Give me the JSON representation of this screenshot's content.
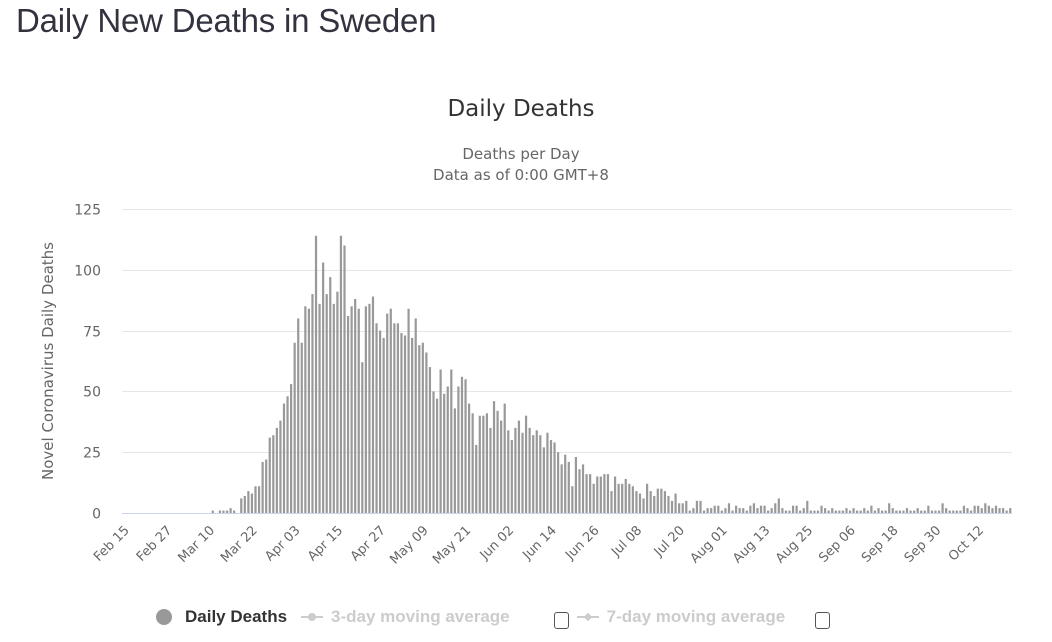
{
  "page": {
    "title": "Daily New Deaths in Sweden"
  },
  "chart_data": {
    "type": "bar",
    "title": "Daily Deaths",
    "subtitle_lines": [
      "Deaths per Day",
      "Data as of 0:00 GMT+8"
    ],
    "ylabel": "Novel Coronavirus Daily Deaths",
    "xlabel": "",
    "ylim": [
      0,
      125
    ],
    "yticks": [
      0,
      25,
      50,
      75,
      100,
      125
    ],
    "grid": true,
    "start_date": "Feb 15",
    "xtick_labels": [
      "Feb 15",
      "Feb 27",
      "Mar 10",
      "Mar 22",
      "Apr 03",
      "Apr 15",
      "Apr 27",
      "May 09",
      "May 21",
      "Jun 02",
      "Jun 14",
      "Jun 26",
      "Jul 08",
      "Jul 20",
      "Aug 01",
      "Aug 13",
      "Aug 25",
      "Sep 06",
      "Sep 18",
      "Sep 30",
      "Oct 12"
    ],
    "xtick_interval_days": 12,
    "bar_color": "#999999",
    "series": [
      {
        "name": "Daily Deaths",
        "values": [
          0,
          0,
          0,
          0,
          0,
          0,
          0,
          0,
          0,
          0,
          0,
          0,
          0,
          0,
          0,
          0,
          0,
          0,
          0,
          0,
          0,
          0,
          0,
          0,
          0,
          1,
          0,
          1,
          1,
          1,
          2,
          1,
          0,
          6,
          7,
          9,
          8,
          11,
          11,
          21,
          22,
          31,
          32,
          35,
          38,
          45,
          48,
          53,
          70,
          80,
          70,
          85,
          84,
          90,
          114,
          86,
          103,
          90,
          97,
          86,
          91,
          114,
          110,
          81,
          85,
          88,
          84,
          62,
          85,
          86,
          89,
          78,
          75,
          72,
          82,
          84,
          78,
          78,
          74,
          73,
          84,
          72,
          80,
          69,
          70,
          66,
          60,
          50,
          47,
          59,
          49,
          52,
          59,
          43,
          52,
          56,
          55,
          45,
          41,
          28,
          40,
          40,
          41,
          35,
          46,
          42,
          38,
          45,
          34,
          30,
          35,
          38,
          33,
          40,
          35,
          32,
          34,
          32,
          27,
          33,
          30,
          29,
          25,
          20,
          24,
          21,
          11,
          23,
          18,
          20,
          16,
          16,
          12,
          15,
          15,
          16,
          16,
          9,
          15,
          12,
          12,
          14,
          12,
          11,
          9,
          8,
          6,
          12,
          9,
          7,
          10,
          10,
          9,
          7,
          5,
          8,
          4,
          4,
          5,
          1,
          2,
          5,
          5,
          1,
          2,
          2,
          3,
          3,
          1,
          2,
          4,
          1,
          3,
          2,
          2,
          1,
          3,
          4,
          2,
          3,
          3,
          1,
          2,
          4,
          6,
          2,
          1,
          1,
          3,
          3,
          1,
          2,
          5,
          1,
          1,
          1,
          3,
          2,
          1,
          2,
          1,
          1,
          1,
          2,
          1,
          2,
          1,
          1,
          2,
          1,
          3,
          1,
          2,
          1,
          1,
          4,
          2,
          1,
          1,
          1,
          2,
          1,
          1,
          2,
          1,
          1,
          3,
          1,
          1,
          1,
          4,
          2,
          1,
          1,
          1,
          1,
          3,
          2,
          1,
          3,
          3,
          2,
          4,
          3,
          2,
          3,
          2,
          2,
          1,
          2
        ]
      },
      {
        "name": "3-day moving average",
        "visible": false
      },
      {
        "name": "7-day moving average",
        "visible": false
      }
    ]
  },
  "legend": {
    "items": [
      {
        "label": "Daily Deaths",
        "icon": "circle-icon",
        "active": true
      },
      {
        "label": "3-day moving average",
        "icon": "line-circle-icon",
        "active": false,
        "checkbox_checked": false
      },
      {
        "label": "7-day moving average",
        "icon": "line-diamond-icon",
        "active": false,
        "checkbox_checked": false
      }
    ]
  }
}
